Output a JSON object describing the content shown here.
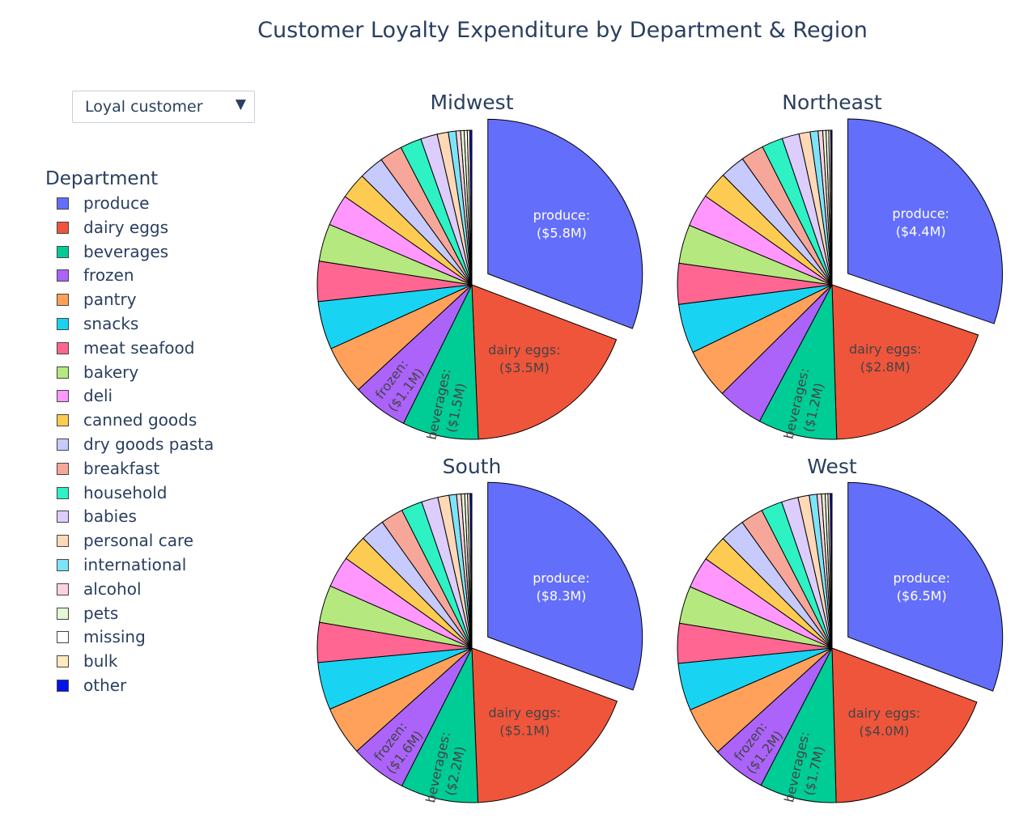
{
  "title": "Customer Loyalty Expenditure by Department & Region",
  "dropdown": {
    "selected": "Loyal customer",
    "arrow": "▼"
  },
  "legend": {
    "title": "Department",
    "items": [
      {
        "label": "produce",
        "color": "#636efa"
      },
      {
        "label": "dairy eggs",
        "color": "#ef553b"
      },
      {
        "label": "beverages",
        "color": "#00cc96"
      },
      {
        "label": "frozen",
        "color": "#ab63fa"
      },
      {
        "label": "pantry",
        "color": "#ffa15a"
      },
      {
        "label": "snacks",
        "color": "#19d3f3"
      },
      {
        "label": "meat seafood",
        "color": "#ff6692"
      },
      {
        "label": "bakery",
        "color": "#b6e880"
      },
      {
        "label": "deli",
        "color": "#ff97ff"
      },
      {
        "label": "canned goods",
        "color": "#fecb52"
      },
      {
        "label": "dry goods pasta",
        "color": "#c6cafd"
      },
      {
        "label": "breakfast",
        "color": "#f7a799"
      },
      {
        "label": "household",
        "color": "#2ef2c4"
      },
      {
        "label": "babies",
        "color": "#dccdfc"
      },
      {
        "label": "personal care",
        "color": "#ffd8b8"
      },
      {
        "label": "international",
        "color": "#7ee3f7"
      },
      {
        "label": "alcohol",
        "color": "#ffd1df"
      },
      {
        "label": "pets",
        "color": "#e5f7d5"
      },
      {
        "label": "missing",
        "color": "#ffffff"
      },
      {
        "label": "bulk",
        "color": "#ffe9bd"
      },
      {
        "label": "other",
        "color": "#0015e8"
      }
    ]
  },
  "chart_data": [
    {
      "type": "pie",
      "title": "Midwest",
      "categories": [
        "produce",
        "dairy eggs",
        "beverages",
        "frozen",
        "pantry",
        "snacks",
        "meat seafood",
        "bakery",
        "deli",
        "canned goods",
        "dry goods pasta",
        "breakfast",
        "household",
        "babies",
        "personal care",
        "international",
        "alcohol",
        "pets",
        "missing",
        "bulk",
        "other"
      ],
      "values": [
        5.8,
        3.5,
        1.5,
        1.1,
        0.96,
        0.95,
        0.79,
        0.74,
        0.62,
        0.52,
        0.49,
        0.45,
        0.42,
        0.33,
        0.22,
        0.15,
        0.09,
        0.07,
        0.06,
        0.05,
        0.04
      ],
      "pull": "produce",
      "data_labels": [
        {
          "category": "produce",
          "name": "produce:",
          "value": "($5.8M)",
          "color": "#ffffff"
        },
        {
          "category": "dairy eggs",
          "name": "dairy eggs:",
          "value": "($3.5M)",
          "color": "#444444"
        },
        {
          "category": "beverages",
          "name": "beverages:",
          "value": "($1.5M)",
          "color": "#444444"
        },
        {
          "category": "frozen",
          "name": "frozen:",
          "value": "($1.1M)",
          "color": "#444444"
        }
      ]
    },
    {
      "type": "pie",
      "title": "Northeast",
      "categories": [
        "produce",
        "dairy eggs",
        "beverages",
        "frozen",
        "pantry",
        "snacks",
        "meat seafood",
        "bakery",
        "deli",
        "canned goods",
        "dry goods pasta",
        "breakfast",
        "household",
        "babies",
        "personal care",
        "international",
        "alcohol",
        "pets",
        "missing",
        "bulk",
        "other"
      ],
      "values": [
        4.4,
        2.8,
        1.2,
        0.7,
        0.76,
        0.75,
        0.62,
        0.59,
        0.5,
        0.41,
        0.38,
        0.35,
        0.32,
        0.26,
        0.17,
        0.12,
        0.07,
        0.05,
        0.04,
        0.03,
        0.02
      ],
      "pull": "produce",
      "data_labels": [
        {
          "category": "produce",
          "name": "produce:",
          "value": "($4.4M)",
          "color": "#ffffff"
        },
        {
          "category": "dairy eggs",
          "name": "dairy eggs:",
          "value": "($2.8M)",
          "color": "#444444"
        },
        {
          "category": "beverages",
          "name": "beverages:",
          "value": "($1.2M)",
          "color": "#444444"
        }
      ]
    },
    {
      "type": "pie",
      "title": "South",
      "categories": [
        "produce",
        "dairy eggs",
        "beverages",
        "frozen",
        "pantry",
        "snacks",
        "meat seafood",
        "bakery",
        "deli",
        "canned goods",
        "dry goods pasta",
        "breakfast",
        "household",
        "babies",
        "personal care",
        "international",
        "alcohol",
        "pets",
        "missing",
        "bulk",
        "other"
      ],
      "values": [
        8.3,
        5.1,
        2.2,
        1.6,
        1.4,
        1.35,
        1.13,
        1.06,
        0.89,
        0.74,
        0.7,
        0.64,
        0.6,
        0.47,
        0.32,
        0.21,
        0.13,
        0.1,
        0.08,
        0.07,
        0.05
      ],
      "pull": "produce",
      "data_labels": [
        {
          "category": "produce",
          "name": "produce:",
          "value": "($8.3M)",
          "color": "#ffffff"
        },
        {
          "category": "dairy eggs",
          "name": "dairy eggs:",
          "value": "($5.1M)",
          "color": "#444444"
        },
        {
          "category": "beverages",
          "name": "beverages:",
          "value": "($2.2M)",
          "color": "#444444"
        },
        {
          "category": "frozen",
          "name": "frozen:",
          "value": "($1.6M)",
          "color": "#444444"
        }
      ]
    },
    {
      "type": "pie",
      "title": "West",
      "categories": [
        "produce",
        "dairy eggs",
        "beverages",
        "frozen",
        "pantry",
        "snacks",
        "meat seafood",
        "bakery",
        "deli",
        "canned goods",
        "dry goods pasta",
        "breakfast",
        "household",
        "babies",
        "personal care",
        "international",
        "alcohol",
        "pets",
        "missing",
        "bulk",
        "other"
      ],
      "values": [
        6.5,
        4.0,
        1.7,
        1.2,
        1.1,
        1.05,
        0.88,
        0.83,
        0.7,
        0.58,
        0.55,
        0.5,
        0.47,
        0.37,
        0.25,
        0.17,
        0.1,
        0.08,
        0.06,
        0.05,
        0.04
      ],
      "pull": "produce",
      "data_labels": [
        {
          "category": "produce",
          "name": "produce:",
          "value": "($6.5M)",
          "color": "#ffffff"
        },
        {
          "category": "dairy eggs",
          "name": "dairy eggs:",
          "value": "($4.0M)",
          "color": "#444444"
        },
        {
          "category": "beverages",
          "name": "beverages:",
          "value": "($1.7M)",
          "color": "#444444"
        },
        {
          "category": "frozen",
          "name": "frozen:",
          "value": "($1.2M)",
          "color": "#444444"
        }
      ]
    }
  ]
}
